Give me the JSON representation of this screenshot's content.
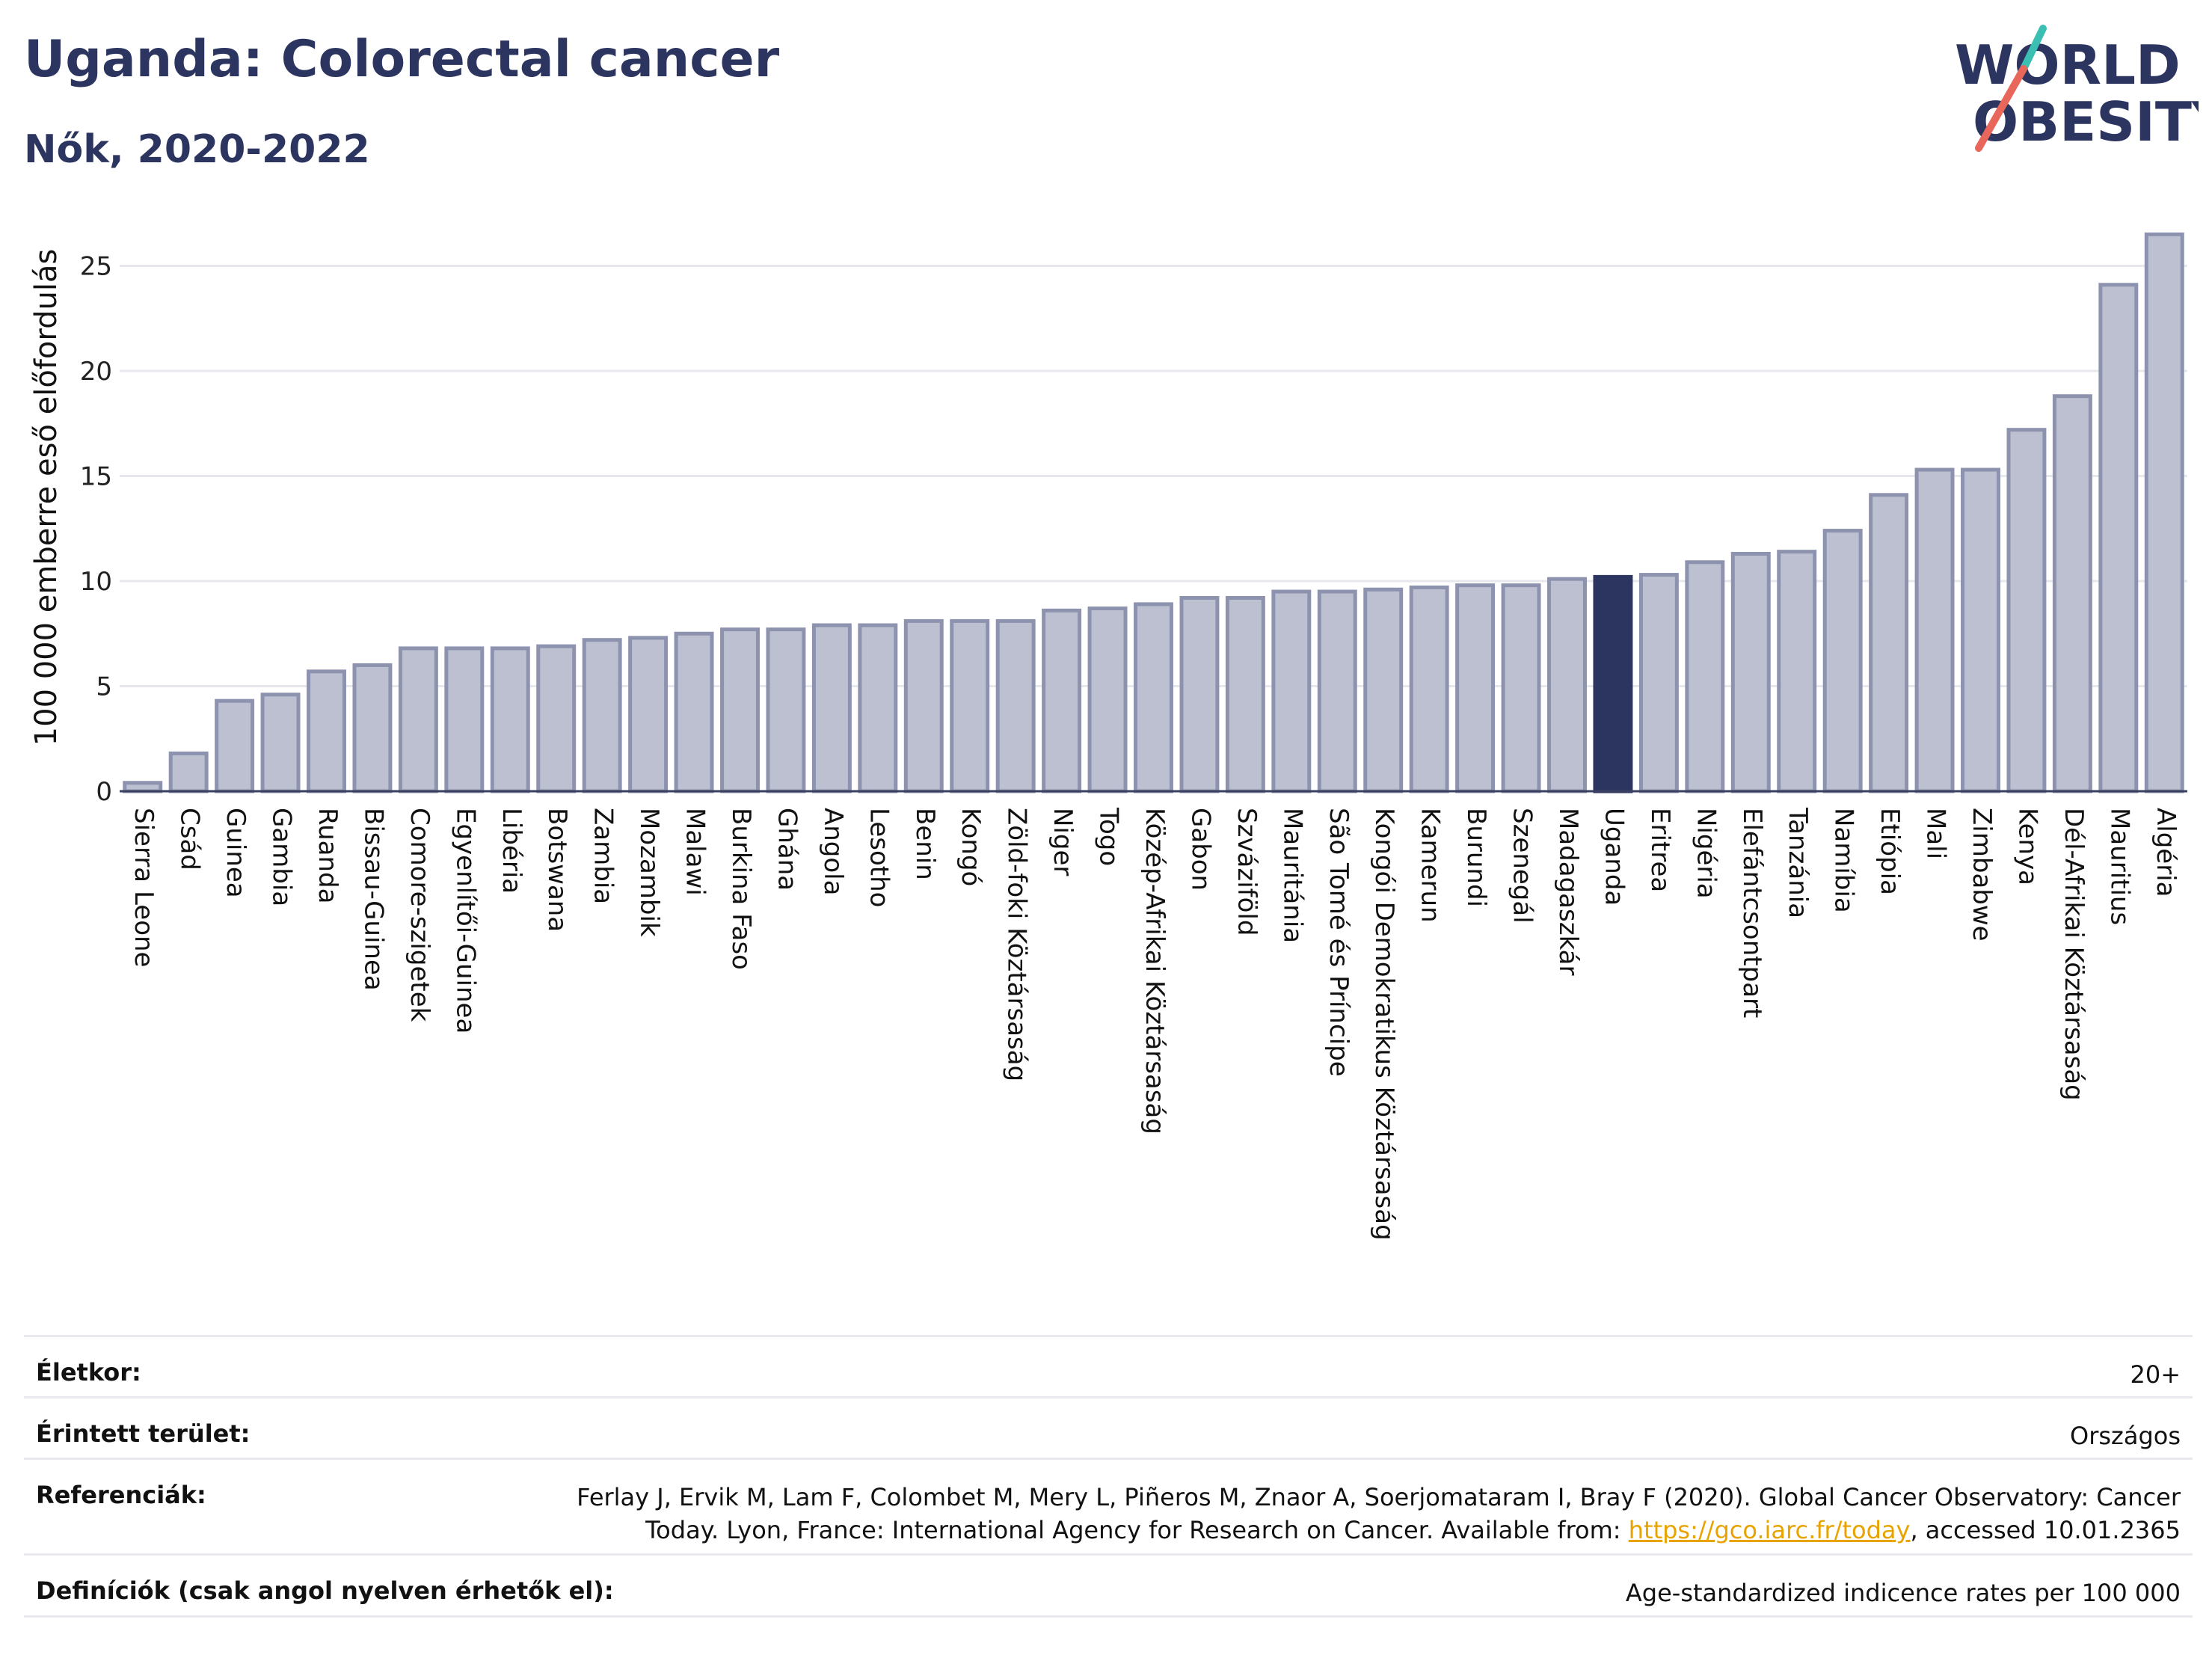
{
  "header": {
    "title": "Uganda: Colorectal cancer",
    "subtitle": "Nők, 2020-2022",
    "logo_line1": "WORLD",
    "logo_line2": "OBESITY"
  },
  "colors": {
    "bar": "#bcc0d0",
    "bar_stroke": "#8d93ae",
    "highlight": "#2c3560",
    "grid": "#e6e8ee",
    "logo_teal": "#3bbfb2",
    "logo_red": "#e8665a"
  },
  "chart_data": {
    "type": "bar",
    "ylabel": "100 000 emberre eső előfordulás",
    "yticks": [
      0,
      5,
      10,
      15,
      20,
      25
    ],
    "ylim": [
      0,
      27.5
    ],
    "grid": true,
    "highlight": "Uganda",
    "categories": [
      "Sierra Leone",
      "Csád",
      "Guinea",
      "Gambia",
      "Ruanda",
      "Bissau-Guinea",
      "Comore-szigetek",
      "Egyenlítői-Guinea",
      "Libéria",
      "Botswana",
      "Zambia",
      "Mozambik",
      "Malawi",
      "Burkina Faso",
      "Ghána",
      "Angola",
      "Lesotho",
      "Benin",
      "Kongó",
      "Zöld-foki Köztársaság",
      "Niger",
      "Togo",
      "Közép-Afrikai Köztársaság",
      "Gabon",
      "Szváziföld",
      "Mauritánia",
      "São Tomé és Príncipe",
      "Kongói Demokratikus Köztársaság",
      "Kamerun",
      "Burundi",
      "Szenegál",
      "Madagaszkár",
      "Uganda",
      "Eritrea",
      "Nigéria",
      "Elefántcsontpart",
      "Tanzánia",
      "Namíbia",
      "Etiópia",
      "Mali",
      "Zimbabwe",
      "Kenya",
      "Dél-Afrikai Köztársaság",
      "Mauritius",
      "Algéria"
    ],
    "values": [
      0.4,
      1.8,
      4.3,
      4.6,
      5.7,
      6.0,
      6.8,
      6.8,
      6.8,
      6.9,
      7.2,
      7.3,
      7.5,
      7.7,
      7.7,
      7.9,
      7.9,
      8.1,
      8.1,
      8.1,
      8.6,
      8.7,
      8.9,
      9.2,
      9.2,
      9.5,
      9.5,
      9.6,
      9.7,
      9.8,
      9.8,
      10.1,
      10.2,
      10.3,
      10.9,
      11.3,
      11.4,
      12.4,
      14.1,
      15.3,
      15.3,
      17.2,
      18.8,
      24.1,
      26.5
    ]
  },
  "info": {
    "age_label": "Életkor:",
    "age_value": "20+",
    "area_label": "Érintett terület:",
    "area_value": "Országos",
    "ref_label": "Referenciák:",
    "ref_text1": "Ferlay J, Ervik M, Lam F, Colombet M, Mery L, Piñeros M, Znaor A, Soerjomataram I, Bray F (2020). Global Cancer Observatory: Cancer",
    "ref_text2": "Today. Lyon, France: International Agency for Research on Cancer. Available from:",
    "ref_link": "https://gco.iarc.fr/today",
    "ref_text3": ", accessed 10.01.2365",
    "def_label": "Definíciók (csak angol nyelven érhetők el):",
    "def_value": "Age-standardized indicence rates per 100 000"
  }
}
